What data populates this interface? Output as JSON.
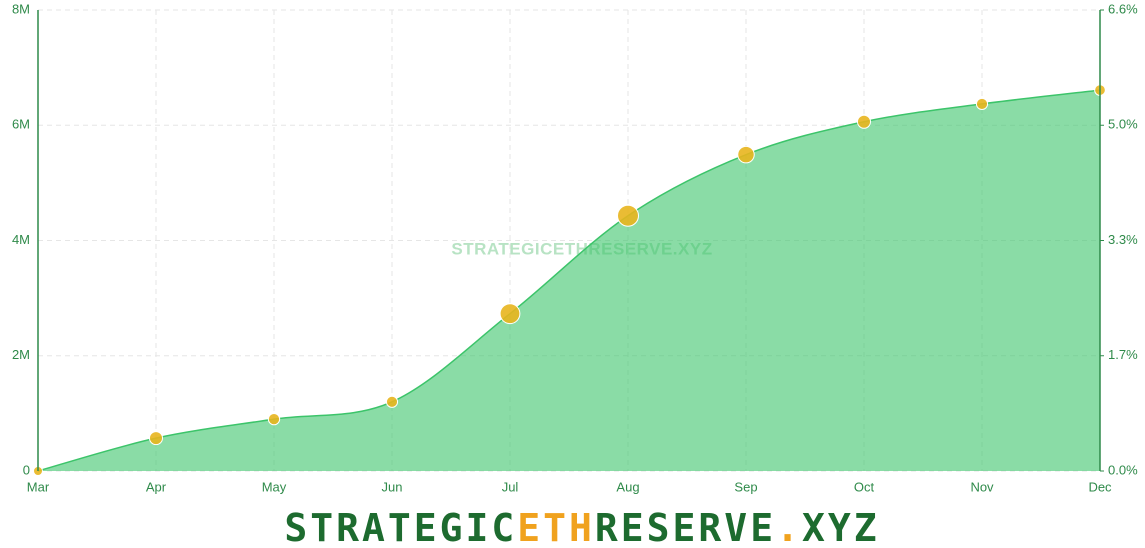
{
  "chart_data": {
    "type": "area",
    "watermark": "STRATEGICETHRESERVE.XYZ",
    "logo": [
      {
        "text": "STRATEGIC",
        "color": "#1d6b2f"
      },
      {
        "text": "ETH",
        "color": "#f0a21e"
      },
      {
        "text": "RESERVE",
        "color": "#1d6b2f"
      },
      {
        "text": ".",
        "color": "#f0a21e"
      },
      {
        "text": "XYZ",
        "color": "#1d6b2f"
      }
    ],
    "categories": [
      "Mar",
      "Apr",
      "May",
      "Jun",
      "Jul",
      "Aug",
      "Sep",
      "Oct",
      "Nov",
      "Dec"
    ],
    "series": [
      {
        "color": "#3cc46a",
        "values": [
          0,
          570000,
          900000,
          1200000,
          2730000,
          4430000,
          5490000,
          6060000,
          6370000,
          6610000
        ]
      }
    ],
    "ylim": [
      0,
      8000000
    ],
    "yticks": [
      0,
      {
        "value": 2000000,
        "label": "2M"
      },
      {
        "value": 4000000,
        "label": "4M"
      },
      {
        "value": 6000000,
        "label": "6M"
      },
      {
        "value": 8000000,
        "label": "8M"
      }
    ],
    "y2lim": [
      0,
      6.6
    ],
    "y2ticks": [
      {
        "value": 0,
        "label": "0.0%"
      },
      {
        "value": 1.65,
        "label": "1.7%"
      },
      {
        "value": 3.3,
        "label": "3.3%"
      },
      {
        "value": 4.95,
        "label": "5.0%"
      },
      {
        "value": 6.6,
        "label": "6.6%"
      }
    ],
    "grid": true,
    "point_color": "#e8b51e"
  }
}
